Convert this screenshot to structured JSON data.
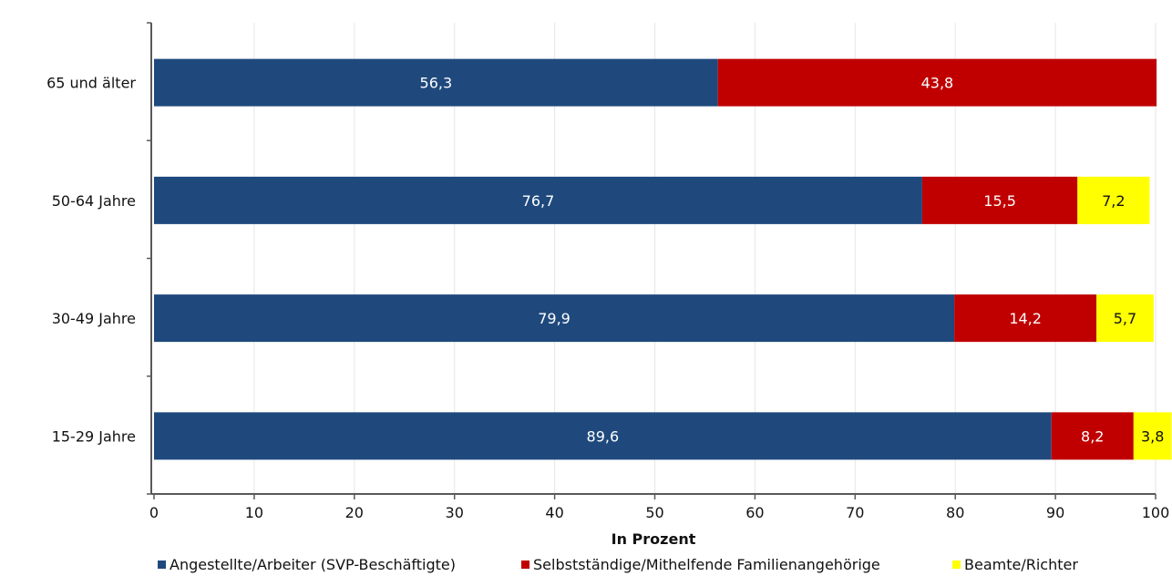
{
  "chart_data": {
    "type": "bar",
    "orientation": "horizontal",
    "stacked": true,
    "categories": [
      "65 und älter",
      "50-64 Jahre",
      "30-49 Jahre",
      "15-29 Jahre"
    ],
    "series": [
      {
        "name": "Angestellte/Arbeiter (SVP-Beschäftigte)",
        "color": "#1f497d",
        "label_color": "#ffffff",
        "values": [
          56.3,
          76.7,
          79.9,
          89.6
        ],
        "labels": [
          "56,3",
          "76,7",
          "79,9",
          "89,6"
        ]
      },
      {
        "name": "Selbstständige/Mithelfende Familienangehörige",
        "color": "#c00000",
        "label_color": "#ffffff",
        "values": [
          43.8,
          15.5,
          14.2,
          8.2
        ],
        "labels": [
          "43,8",
          "15,5",
          "14,2",
          "8,2"
        ]
      },
      {
        "name": "Beamte/Richter",
        "color": "#ffff00",
        "label_color": "#111111",
        "values": [
          0,
          7.2,
          5.7,
          3.8
        ],
        "labels": [
          "",
          "7,2",
          "5,7",
          "3,8"
        ]
      }
    ],
    "xlabel": "In Prozent",
    "xlim": [
      0,
      100
    ],
    "xticks": [
      0,
      10,
      20,
      30,
      40,
      50,
      60,
      70,
      80,
      90,
      100
    ],
    "xtick_labels": [
      "0",
      "10",
      "20",
      "30",
      "40",
      "50",
      "60",
      "70",
      "80",
      "90",
      "100"
    ],
    "grid": "vertical",
    "legend_position": "bottom"
  }
}
